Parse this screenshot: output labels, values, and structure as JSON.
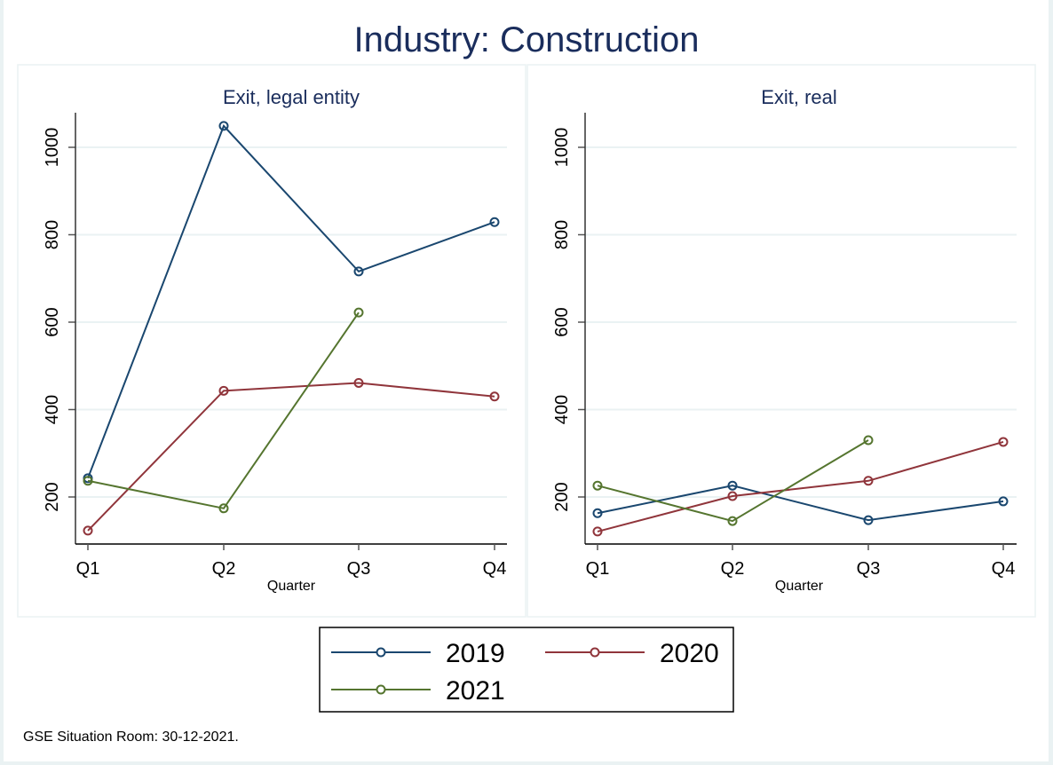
{
  "chart_data": {
    "type": "line",
    "title": "Industry: Construction",
    "note": "GSE Situation Room: 30-12-2021.",
    "legend": {
      "placement": "bottom-center",
      "entries": [
        {
          "name": "2019",
          "color": "#1a476f"
        },
        {
          "name": "2020",
          "color": "#90353b"
        },
        {
          "name": "2021",
          "color": "#55752f"
        }
      ]
    },
    "panels": [
      {
        "title": "Exit, legal entity",
        "xlabel": "Quarter",
        "ylabel": "",
        "categories": [
          "Q1",
          "Q2",
          "Q3",
          "Q4"
        ],
        "yticks": [
          200,
          400,
          600,
          800,
          1000
        ],
        "ylim": [
          90,
          1080
        ],
        "grid": true,
        "series": [
          {
            "name": "2019",
            "color": "#1a476f",
            "values": [
              243,
              1049,
              716,
              829
            ]
          },
          {
            "name": "2020",
            "color": "#90353b",
            "values": [
              123,
              443,
              461,
              430
            ]
          },
          {
            "name": "2021",
            "color": "#55752f",
            "values": [
              237,
              174,
              622,
              null
            ]
          }
        ]
      },
      {
        "title": "Exit, real",
        "xlabel": "Quarter",
        "ylabel": "",
        "categories": [
          "Q1",
          "Q2",
          "Q3",
          "Q4"
        ],
        "yticks": [
          200,
          400,
          600,
          800,
          1000
        ],
        "ylim": [
          90,
          1080
        ],
        "grid": true,
        "series": [
          {
            "name": "2019",
            "color": "#1a476f",
            "values": [
              163,
              226,
              147,
              190
            ]
          },
          {
            "name": "2020",
            "color": "#90353b",
            "values": [
              121,
              202,
              237,
              326
            ]
          },
          {
            "name": "2021",
            "color": "#55752f",
            "values": [
              226,
              145,
              330,
              null
            ]
          }
        ]
      }
    ]
  }
}
